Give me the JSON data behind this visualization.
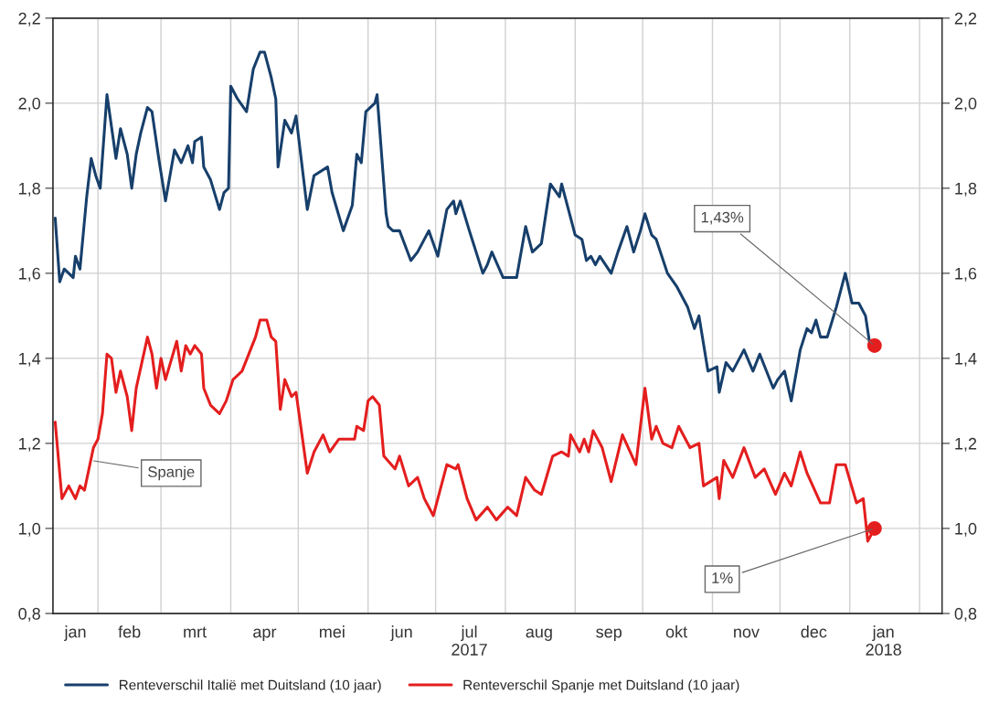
{
  "chart_data": {
    "type": "line",
    "xlim": [
      "2017-01-12",
      "2018-02-11"
    ],
    "xticks": [
      {
        "value": "2017-01-22",
        "label": "jan"
      },
      {
        "value": "2017-02-01",
        "label": null
      },
      {
        "value": "2017-02-15",
        "label": "feb"
      },
      {
        "value": "2017-03-01",
        "label": null
      },
      {
        "value": "2017-03-16",
        "label": "mrt"
      },
      {
        "value": "2017-04-01",
        "label": null
      },
      {
        "value": "2017-04-16",
        "label": "apr"
      },
      {
        "value": "2017-05-01",
        "label": null
      },
      {
        "value": "2017-05-16",
        "label": "mei"
      },
      {
        "value": "2017-06-01",
        "label": null
      },
      {
        "value": "2017-06-16",
        "label": "jun"
      },
      {
        "value": "2017-07-01",
        "label": null
      },
      {
        "value": "2017-07-16",
        "label": "jul\n2017"
      },
      {
        "value": "2017-08-01",
        "label": null
      },
      {
        "value": "2017-08-16",
        "label": "aug"
      },
      {
        "value": "2017-09-01",
        "label": null
      },
      {
        "value": "2017-09-16",
        "label": "sep"
      },
      {
        "value": "2017-10-01",
        "label": null
      },
      {
        "value": "2017-10-16",
        "label": "okt"
      },
      {
        "value": "2017-11-01",
        "label": null
      },
      {
        "value": "2017-11-16",
        "label": "nov"
      },
      {
        "value": "2017-12-01",
        "label": null
      },
      {
        "value": "2017-12-16",
        "label": "dec"
      },
      {
        "value": "2018-01-01",
        "label": null
      },
      {
        "value": "2018-01-16",
        "label": "jan\n2018"
      },
      {
        "value": "2018-02-01",
        "label": null
      }
    ],
    "ylim": [
      0.8,
      2.2
    ],
    "yticks": [
      {
        "value": 0.8,
        "label": "0,8"
      },
      {
        "value": 1.0,
        "label": "1,0"
      },
      {
        "value": 1.2,
        "label": "1,2"
      },
      {
        "value": 1.4,
        "label": "1,4"
      },
      {
        "value": 1.6,
        "label": "1,6"
      },
      {
        "value": 1.8,
        "label": "1,8"
      },
      {
        "value": 2.0,
        "label": "2,0"
      },
      {
        "value": 2.2,
        "label": "2,2"
      }
    ],
    "y2lim": [
      0.8,
      2.2
    ],
    "y2ticks": [
      {
        "value": 0.8,
        "label": "0,8"
      },
      {
        "value": 1.0,
        "label": "1,0"
      },
      {
        "value": 1.2,
        "label": "1,2"
      },
      {
        "value": 1.4,
        "label": "1,4"
      },
      {
        "value": 1.6,
        "label": "1,6"
      },
      {
        "value": 1.8,
        "label": "1,8"
      },
      {
        "value": 2.0,
        "label": "2,0"
      },
      {
        "value": 2.2,
        "label": "2,2"
      }
    ],
    "grid": true,
    "legend": "bottom",
    "series": [
      {
        "name": "Renteverschil Italië met Duitsland (10 jaar)",
        "color": "#173f6b",
        "x": [
          "2017-01-13",
          "2017-01-15",
          "2017-01-17",
          "2017-01-21",
          "2017-01-22",
          "2017-01-24",
          "2017-01-27",
          "2017-01-29",
          "2017-01-31",
          "2017-02-02",
          "2017-02-05",
          "2017-02-09",
          "2017-02-11",
          "2017-02-14",
          "2017-02-16",
          "2017-02-18",
          "2017-02-20",
          "2017-02-23",
          "2017-02-25",
          "2017-02-28",
          "2017-03-03",
          "2017-03-07",
          "2017-03-10",
          "2017-03-13",
          "2017-03-15",
          "2017-03-16",
          "2017-03-19",
          "2017-03-20",
          "2017-03-23",
          "2017-03-27",
          "2017-03-29",
          "2017-03-31",
          "2017-04-01",
          "2017-04-04",
          "2017-04-08",
          "2017-04-11",
          "2017-04-14",
          "2017-04-16",
          "2017-04-19",
          "2017-04-21",
          "2017-04-22",
          "2017-04-25",
          "2017-04-28",
          "2017-04-30",
          "2017-05-05",
          "2017-05-08",
          "2017-05-14",
          "2017-05-16",
          "2017-05-21",
          "2017-05-25",
          "2017-05-27",
          "2017-05-29",
          "2017-05-31",
          "2017-06-04",
          "2017-06-05",
          "2017-06-09",
          "2017-06-10",
          "2017-06-12",
          "2017-06-15",
          "2017-06-20",
          "2017-06-23",
          "2017-06-28",
          "2017-07-02",
          "2017-07-06",
          "2017-07-09",
          "2017-07-10",
          "2017-07-12",
          "2017-07-16",
          "2017-07-22",
          "2017-07-24",
          "2017-07-26",
          "2017-07-31",
          "2017-08-06",
          "2017-08-10",
          "2017-08-13",
          "2017-08-17",
          "2017-08-21",
          "2017-08-25",
          "2017-08-26",
          "2017-09-01",
          "2017-09-04",
          "2017-09-06",
          "2017-09-08",
          "2017-09-10",
          "2017-09-12",
          "2017-09-17",
          "2017-09-20",
          "2017-09-24",
          "2017-09-27",
          "2017-09-30",
          "2017-10-02",
          "2017-10-05",
          "2017-10-07",
          "2017-10-12",
          "2017-10-16",
          "2017-10-21",
          "2017-10-24",
          "2017-10-26",
          "2017-10-30",
          "2017-11-03",
          "2017-11-04",
          "2017-11-07",
          "2017-11-10",
          "2017-11-15",
          "2017-11-19",
          "2017-11-22",
          "2017-11-28",
          "2017-11-30",
          "2017-12-03",
          "2017-12-06",
          "2017-12-10",
          "2017-12-13",
          "2017-12-15",
          "2017-12-17",
          "2017-12-19",
          "2017-12-22",
          "2017-12-26",
          "2017-12-30",
          "2018-01-02",
          "2018-01-05",
          "2018-01-08",
          "2018-01-10",
          "2018-01-12"
        ],
        "values": [
          1.73,
          1.58,
          1.61,
          1.59,
          1.64,
          1.61,
          1.78,
          1.87,
          1.83,
          1.8,
          2.02,
          1.87,
          1.94,
          1.88,
          1.8,
          1.88,
          1.93,
          1.99,
          1.98,
          1.87,
          1.77,
          1.89,
          1.86,
          1.9,
          1.86,
          1.91,
          1.92,
          1.85,
          1.82,
          1.75,
          1.79,
          1.8,
          2.04,
          2.01,
          1.98,
          2.08,
          2.12,
          2.12,
          2.06,
          2.01,
          1.85,
          1.96,
          1.93,
          1.97,
          1.75,
          1.83,
          1.85,
          1.79,
          1.7,
          1.76,
          1.88,
          1.86,
          1.98,
          2.0,
          2.02,
          1.74,
          1.71,
          1.7,
          1.7,
          1.63,
          1.65,
          1.7,
          1.64,
          1.75,
          1.77,
          1.74,
          1.77,
          1.7,
          1.6,
          1.62,
          1.65,
          1.59,
          1.59,
          1.71,
          1.65,
          1.67,
          1.81,
          1.78,
          1.81,
          1.69,
          1.68,
          1.63,
          1.64,
          1.62,
          1.64,
          1.6,
          1.65,
          1.71,
          1.65,
          1.7,
          1.74,
          1.69,
          1.68,
          1.6,
          1.57,
          1.52,
          1.47,
          1.5,
          1.37,
          1.38,
          1.32,
          1.39,
          1.37,
          1.42,
          1.37,
          1.41,
          1.33,
          1.35,
          1.37,
          1.3,
          1.42,
          1.47,
          1.46,
          1.49,
          1.45,
          1.45,
          1.52,
          1.6,
          1.53,
          1.53,
          1.5,
          1.43,
          1.43
        ]
      },
      {
        "name": "Renteverschil Spanje met Duitsland (10 jaar)",
        "color": "#e41e1e",
        "x": [
          "2017-01-13",
          "2017-01-16",
          "2017-01-19",
          "2017-01-22",
          "2017-01-24",
          "2017-01-26",
          "2017-01-30",
          "2017-02-01",
          "2017-02-03",
          "2017-02-05",
          "2017-02-07",
          "2017-02-09",
          "2017-02-11",
          "2017-02-14",
          "2017-02-16",
          "2017-02-18",
          "2017-02-23",
          "2017-02-25",
          "2017-02-27",
          "2017-03-01",
          "2017-03-03",
          "2017-03-08",
          "2017-03-10",
          "2017-03-12",
          "2017-03-14",
          "2017-03-16",
          "2017-03-19",
          "2017-03-20",
          "2017-03-23",
          "2017-03-27",
          "2017-03-30",
          "2017-04-02",
          "2017-04-06",
          "2017-04-12",
          "2017-04-14",
          "2017-04-17",
          "2017-04-19",
          "2017-04-21",
          "2017-04-23",
          "2017-04-25",
          "2017-04-28",
          "2017-04-30",
          "2017-05-05",
          "2017-05-08",
          "2017-05-12",
          "2017-05-15",
          "2017-05-19",
          "2017-05-26",
          "2017-05-27",
          "2017-05-30",
          "2017-06-01",
          "2017-06-03",
          "2017-06-06",
          "2017-06-08",
          "2017-06-13",
          "2017-06-15",
          "2017-06-19",
          "2017-06-23",
          "2017-06-26",
          "2017-06-30",
          "2017-07-06",
          "2017-07-10",
          "2017-07-11",
          "2017-07-15",
          "2017-07-19",
          "2017-07-24",
          "2017-07-28",
          "2017-08-02",
          "2017-08-06",
          "2017-08-10",
          "2017-08-14",
          "2017-08-17",
          "2017-08-22",
          "2017-08-26",
          "2017-08-29",
          "2017-08-30",
          "2017-09-03",
          "2017-09-05",
          "2017-09-07",
          "2017-09-09",
          "2017-09-13",
          "2017-09-17",
          "2017-09-22",
          "2017-09-28",
          "2017-09-30",
          "2017-10-02",
          "2017-10-05",
          "2017-10-07",
          "2017-10-10",
          "2017-10-14",
          "2017-10-17",
          "2017-10-22",
          "2017-10-26",
          "2017-10-28",
          "2017-11-03",
          "2017-11-04",
          "2017-11-06",
          "2017-11-10",
          "2017-11-15",
          "2017-11-20",
          "2017-11-24",
          "2017-11-29",
          "2017-12-03",
          "2017-12-06",
          "2017-12-10",
          "2017-12-13",
          "2017-12-19",
          "2017-12-23",
          "2017-12-26",
          "2017-12-30",
          "2018-01-04",
          "2018-01-07",
          "2018-01-09",
          "2018-01-12"
        ],
        "values": [
          1.25,
          1.07,
          1.1,
          1.07,
          1.1,
          1.09,
          1.19,
          1.21,
          1.27,
          1.41,
          1.4,
          1.32,
          1.37,
          1.31,
          1.23,
          1.33,
          1.45,
          1.41,
          1.33,
          1.4,
          1.35,
          1.44,
          1.37,
          1.43,
          1.41,
          1.43,
          1.41,
          1.33,
          1.29,
          1.27,
          1.3,
          1.35,
          1.37,
          1.45,
          1.49,
          1.49,
          1.45,
          1.44,
          1.28,
          1.35,
          1.31,
          1.32,
          1.13,
          1.18,
          1.22,
          1.18,
          1.21,
          1.21,
          1.24,
          1.23,
          1.3,
          1.31,
          1.29,
          1.17,
          1.14,
          1.17,
          1.1,
          1.12,
          1.07,
          1.03,
          1.15,
          1.14,
          1.15,
          1.07,
          1.02,
          1.05,
          1.02,
          1.05,
          1.03,
          1.12,
          1.09,
          1.08,
          1.17,
          1.18,
          1.17,
          1.22,
          1.18,
          1.21,
          1.18,
          1.23,
          1.19,
          1.11,
          1.22,
          1.15,
          1.24,
          1.33,
          1.21,
          1.24,
          1.2,
          1.19,
          1.24,
          1.19,
          1.2,
          1.1,
          1.12,
          1.07,
          1.16,
          1.12,
          1.19,
          1.12,
          1.14,
          1.08,
          1.13,
          1.1,
          1.18,
          1.13,
          1.06,
          1.06,
          1.15,
          1.15,
          1.06,
          1.07,
          0.97,
          1.0
        ]
      },
      {
        "type": "scatter",
        "color": "#e41e1e",
        "marker": "circle",
        "x": [
          "2018-01-12",
          "2018-01-12"
        ],
        "values": [
          1.43,
          1.0
        ]
      }
    ],
    "annotations": [
      {
        "text": "Spanje",
        "x": "2017-01-29",
        "y": 1.16
      },
      {
        "text": "1,43%",
        "x": "2018-01-12",
        "y": 1.43
      },
      {
        "text": "1%",
        "x": "2018-01-12",
        "y": 1.0
      }
    ]
  }
}
